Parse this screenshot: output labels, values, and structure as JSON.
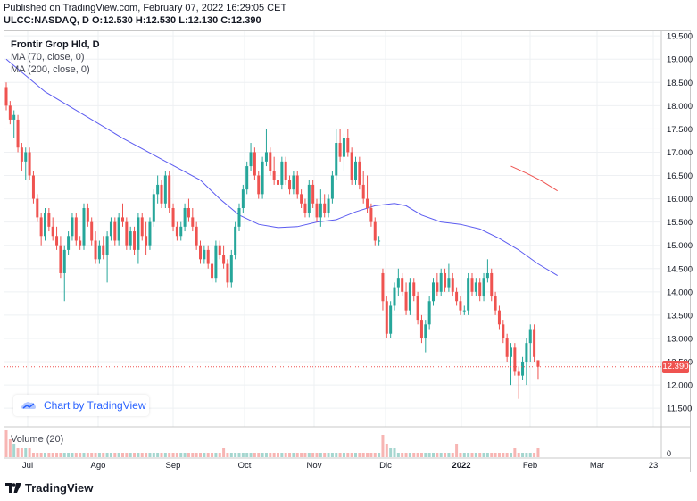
{
  "header": {
    "published": "Published on TradingView.com, February 07, 2022 16:29:05 CET",
    "symbol_line": "ULCC:NASDAQ, D  O:12.530 H:12.530 L:12.130 C:12.390"
  },
  "legend": {
    "title": "Frontir Grop Hld, D",
    "ma70": "MA (70, close, 0)",
    "ma200": "MA (200, close, 0)",
    "volume": "Volume (20)"
  },
  "badge": {
    "text": "Chart by TradingView"
  },
  "footer": {
    "logo_text": "TradingView"
  },
  "colors": {
    "up": "#26a69a",
    "down": "#ef5350",
    "ma70": "#5b5bf0",
    "ma200": "#ef5350",
    "grid": "#eef0f3"
  },
  "chart_data": {
    "type": "candlestick",
    "ylim": [
      11.4,
      19.6
    ],
    "yticks": [
      "19.500",
      "19.000",
      "18.500",
      "18.000",
      "17.500",
      "17.000",
      "16.500",
      "16.000",
      "15.500",
      "15.000",
      "14.500",
      "14.000",
      "13.500",
      "13.000",
      "12.500",
      "12.000",
      "11.500"
    ],
    "yticks_values": [
      19.5,
      19.0,
      18.5,
      18.0,
      17.5,
      17.0,
      16.5,
      16.0,
      15.5,
      15.0,
      14.5,
      14.0,
      13.5,
      13.0,
      12.5,
      12.0,
      11.5
    ],
    "xticks": [
      "Jul",
      "Ago",
      "Sep",
      "Oct",
      "Nov",
      "Dic",
      "2022",
      "Feb",
      "Mar",
      "23"
    ],
    "last_price": "12.390",
    "last_value": 12.39,
    "volume_zero_label": "0",
    "candles": [
      {
        "o": 18.4,
        "h": 18.5,
        "l": 17.9,
        "c": 18.0
      },
      {
        "o": 18.0,
        "h": 18.1,
        "l": 17.6,
        "c": 17.7
      },
      {
        "o": 17.7,
        "h": 17.9,
        "l": 17.3,
        "c": 17.8
      },
      {
        "o": 17.7,
        "h": 17.8,
        "l": 17.0,
        "c": 17.1
      },
      {
        "o": 17.1,
        "h": 17.2,
        "l": 16.6,
        "c": 16.8
      },
      {
        "o": 16.8,
        "h": 17.1,
        "l": 16.4,
        "c": 17.0
      },
      {
        "o": 17.0,
        "h": 17.1,
        "l": 16.4,
        "c": 16.5
      },
      {
        "o": 16.5,
        "h": 16.6,
        "l": 15.9,
        "c": 16.0
      },
      {
        "o": 16.0,
        "h": 16.1,
        "l": 15.5,
        "c": 15.6
      },
      {
        "o": 15.6,
        "h": 15.7,
        "l": 15.0,
        "c": 15.2
      },
      {
        "o": 15.2,
        "h": 15.8,
        "l": 15.1,
        "c": 15.7
      },
      {
        "o": 15.7,
        "h": 15.8,
        "l": 15.3,
        "c": 15.4
      },
      {
        "o": 15.4,
        "h": 15.6,
        "l": 15.1,
        "c": 15.2
      },
      {
        "o": 15.2,
        "h": 15.4,
        "l": 14.9,
        "c": 15.0
      },
      {
        "o": 15.0,
        "h": 15.2,
        "l": 14.3,
        "c": 14.4
      },
      {
        "o": 14.4,
        "h": 15.0,
        "l": 13.8,
        "c": 14.9
      },
      {
        "o": 14.9,
        "h": 15.3,
        "l": 14.8,
        "c": 15.2
      },
      {
        "o": 15.2,
        "h": 15.7,
        "l": 15.1,
        "c": 15.6
      },
      {
        "o": 15.6,
        "h": 15.7,
        "l": 15.0,
        "c": 15.1
      },
      {
        "o": 15.1,
        "h": 15.2,
        "l": 14.9,
        "c": 15.0
      },
      {
        "o": 15.0,
        "h": 15.9,
        "l": 14.9,
        "c": 15.8
      },
      {
        "o": 15.8,
        "h": 15.9,
        "l": 15.4,
        "c": 15.5
      },
      {
        "o": 15.5,
        "h": 15.6,
        "l": 15.0,
        "c": 15.1
      },
      {
        "o": 15.1,
        "h": 15.3,
        "l": 14.6,
        "c": 14.7
      },
      {
        "o": 14.7,
        "h": 15.1,
        "l": 14.6,
        "c": 15.0
      },
      {
        "o": 15.0,
        "h": 15.2,
        "l": 14.7,
        "c": 14.8
      },
      {
        "o": 14.8,
        "h": 15.3,
        "l": 14.2,
        "c": 15.2
      },
      {
        "o": 15.2,
        "h": 15.6,
        "l": 15.1,
        "c": 15.5
      },
      {
        "o": 15.5,
        "h": 15.6,
        "l": 15.0,
        "c": 15.1
      },
      {
        "o": 15.1,
        "h": 15.7,
        "l": 15.0,
        "c": 15.6
      },
      {
        "o": 15.6,
        "h": 15.9,
        "l": 15.4,
        "c": 15.5
      },
      {
        "o": 15.5,
        "h": 15.6,
        "l": 14.9,
        "c": 15.0
      },
      {
        "o": 15.0,
        "h": 15.4,
        "l": 14.9,
        "c": 15.3
      },
      {
        "o": 15.3,
        "h": 15.4,
        "l": 14.8,
        "c": 14.9
      },
      {
        "o": 14.9,
        "h": 15.7,
        "l": 14.6,
        "c": 15.6
      },
      {
        "o": 15.6,
        "h": 15.7,
        "l": 15.1,
        "c": 15.2
      },
      {
        "o": 15.2,
        "h": 15.5,
        "l": 14.8,
        "c": 15.0
      },
      {
        "o": 15.0,
        "h": 15.6,
        "l": 14.9,
        "c": 15.5
      },
      {
        "o": 15.5,
        "h": 16.2,
        "l": 15.4,
        "c": 16.1
      },
      {
        "o": 16.1,
        "h": 16.5,
        "l": 15.9,
        "c": 16.3
      },
      {
        "o": 16.3,
        "h": 16.4,
        "l": 15.8,
        "c": 15.9
      },
      {
        "o": 15.9,
        "h": 16.6,
        "l": 15.8,
        "c": 16.5
      },
      {
        "o": 16.5,
        "h": 16.6,
        "l": 15.7,
        "c": 15.8
      },
      {
        "o": 15.8,
        "h": 15.9,
        "l": 15.3,
        "c": 15.4
      },
      {
        "o": 15.4,
        "h": 15.5,
        "l": 15.1,
        "c": 15.2
      },
      {
        "o": 15.2,
        "h": 15.5,
        "l": 15.1,
        "c": 15.4
      },
      {
        "o": 15.4,
        "h": 15.9,
        "l": 15.3,
        "c": 15.8
      },
      {
        "o": 15.8,
        "h": 16.0,
        "l": 15.5,
        "c": 15.6
      },
      {
        "o": 15.6,
        "h": 15.8,
        "l": 15.3,
        "c": 15.4
      },
      {
        "o": 15.4,
        "h": 15.5,
        "l": 14.9,
        "c": 15.0
      },
      {
        "o": 15.0,
        "h": 15.1,
        "l": 14.6,
        "c": 14.7
      },
      {
        "o": 14.7,
        "h": 15.0,
        "l": 14.6,
        "c": 14.9
      },
      {
        "o": 14.9,
        "h": 15.0,
        "l": 14.5,
        "c": 14.6
      },
      {
        "o": 14.6,
        "h": 14.7,
        "l": 14.2,
        "c": 14.3
      },
      {
        "o": 14.3,
        "h": 15.1,
        "l": 14.2,
        "c": 15.0
      },
      {
        "o": 15.0,
        "h": 15.1,
        "l": 14.7,
        "c": 14.8
      },
      {
        "o": 14.8,
        "h": 15.0,
        "l": 14.5,
        "c": 14.6
      },
      {
        "o": 14.6,
        "h": 14.7,
        "l": 14.1,
        "c": 14.2
      },
      {
        "o": 14.2,
        "h": 14.9,
        "l": 14.1,
        "c": 14.8
      },
      {
        "o": 14.8,
        "h": 15.5,
        "l": 14.7,
        "c": 15.4
      },
      {
        "o": 15.4,
        "h": 15.9,
        "l": 15.3,
        "c": 15.8
      },
      {
        "o": 15.8,
        "h": 16.3,
        "l": 15.7,
        "c": 16.2
      },
      {
        "o": 16.2,
        "h": 16.8,
        "l": 16.1,
        "c": 16.7
      },
      {
        "o": 16.7,
        "h": 17.2,
        "l": 16.6,
        "c": 17.0
      },
      {
        "o": 17.0,
        "h": 17.1,
        "l": 16.4,
        "c": 16.5
      },
      {
        "o": 16.5,
        "h": 16.6,
        "l": 16.0,
        "c": 16.1
      },
      {
        "o": 16.1,
        "h": 16.9,
        "l": 16.0,
        "c": 16.8
      },
      {
        "o": 16.8,
        "h": 17.5,
        "l": 16.7,
        "c": 17.0
      },
      {
        "o": 17.0,
        "h": 17.1,
        "l": 16.5,
        "c": 16.6
      },
      {
        "o": 16.6,
        "h": 16.9,
        "l": 16.3,
        "c": 16.4
      },
      {
        "o": 16.4,
        "h": 16.7,
        "l": 16.2,
        "c": 16.3
      },
      {
        "o": 16.3,
        "h": 16.9,
        "l": 16.2,
        "c": 16.8
      },
      {
        "o": 16.8,
        "h": 16.9,
        "l": 16.3,
        "c": 16.4
      },
      {
        "o": 16.4,
        "h": 16.5,
        "l": 16.1,
        "c": 16.2
      },
      {
        "o": 16.2,
        "h": 16.6,
        "l": 16.1,
        "c": 16.5
      },
      {
        "o": 16.5,
        "h": 16.6,
        "l": 16.0,
        "c": 16.1
      },
      {
        "o": 16.1,
        "h": 16.2,
        "l": 15.8,
        "c": 15.9
      },
      {
        "o": 15.9,
        "h": 16.0,
        "l": 15.6,
        "c": 15.7
      },
      {
        "o": 15.7,
        "h": 16.4,
        "l": 15.6,
        "c": 16.3
      },
      {
        "o": 16.3,
        "h": 16.4,
        "l": 15.8,
        "c": 15.9
      },
      {
        "o": 15.9,
        "h": 16.0,
        "l": 15.5,
        "c": 15.6
      },
      {
        "o": 15.6,
        "h": 16.2,
        "l": 15.4,
        "c": 15.9
      },
      {
        "o": 15.9,
        "h": 16.1,
        "l": 15.6,
        "c": 15.7
      },
      {
        "o": 15.7,
        "h": 16.1,
        "l": 15.6,
        "c": 16.0
      },
      {
        "o": 16.0,
        "h": 16.6,
        "l": 15.9,
        "c": 16.5
      },
      {
        "o": 16.5,
        "h": 17.5,
        "l": 16.4,
        "c": 17.2
      },
      {
        "o": 17.2,
        "h": 17.5,
        "l": 16.8,
        "c": 16.9
      },
      {
        "o": 16.9,
        "h": 17.4,
        "l": 16.6,
        "c": 17.3
      },
      {
        "o": 17.3,
        "h": 17.5,
        "l": 16.9,
        "c": 17.0
      },
      {
        "o": 17.0,
        "h": 17.1,
        "l": 16.3,
        "c": 16.4
      },
      {
        "o": 16.4,
        "h": 16.9,
        "l": 16.3,
        "c": 16.8
      },
      {
        "o": 16.8,
        "h": 16.9,
        "l": 16.2,
        "c": 16.3
      },
      {
        "o": 16.3,
        "h": 16.6,
        "l": 15.9,
        "c": 16.0
      },
      {
        "o": 16.0,
        "h": 16.5,
        "l": 15.7,
        "c": 15.8
      },
      {
        "o": 15.8,
        "h": 15.9,
        "l": 15.4,
        "c": 15.5
      },
      {
        "o": 15.5,
        "h": 15.6,
        "l": 15.0,
        "c": 15.1
      },
      {
        "o": 15.1,
        "h": 15.2,
        "l": 15.0,
        "c": 15.1
      },
      {
        "o": 14.4,
        "h": 14.5,
        "l": 13.6,
        "c": 13.8
      },
      {
        "o": 13.8,
        "h": 13.9,
        "l": 13.0,
        "c": 13.1
      },
      {
        "o": 13.1,
        "h": 13.8,
        "l": 13.0,
        "c": 13.7
      },
      {
        "o": 13.7,
        "h": 14.2,
        "l": 13.6,
        "c": 14.1
      },
      {
        "o": 14.1,
        "h": 14.5,
        "l": 13.9,
        "c": 14.3
      },
      {
        "o": 14.3,
        "h": 14.4,
        "l": 13.9,
        "c": 14.0
      },
      {
        "o": 14.0,
        "h": 14.2,
        "l": 13.5,
        "c": 13.6
      },
      {
        "o": 13.6,
        "h": 14.3,
        "l": 13.5,
        "c": 14.2
      },
      {
        "o": 14.2,
        "h": 14.3,
        "l": 13.8,
        "c": 13.9
      },
      {
        "o": 13.9,
        "h": 14.0,
        "l": 13.3,
        "c": 13.4
      },
      {
        "o": 13.4,
        "h": 13.5,
        "l": 12.9,
        "c": 13.0
      },
      {
        "o": 13.0,
        "h": 13.4,
        "l": 12.7,
        "c": 13.3
      },
      {
        "o": 13.3,
        "h": 13.9,
        "l": 13.2,
        "c": 13.8
      },
      {
        "o": 13.8,
        "h": 14.3,
        "l": 13.7,
        "c": 14.2
      },
      {
        "o": 14.2,
        "h": 14.4,
        "l": 13.9,
        "c": 14.0
      },
      {
        "o": 14.0,
        "h": 14.5,
        "l": 13.9,
        "c": 14.4
      },
      {
        "o": 14.4,
        "h": 14.5,
        "l": 14.0,
        "c": 14.1
      },
      {
        "o": 14.1,
        "h": 14.6,
        "l": 14.0,
        "c": 14.3
      },
      {
        "o": 14.3,
        "h": 14.4,
        "l": 13.9,
        "c": 14.0
      },
      {
        "o": 14.0,
        "h": 14.1,
        "l": 13.7,
        "c": 13.8
      },
      {
        "o": 13.8,
        "h": 13.9,
        "l": 13.5,
        "c": 13.6
      },
      {
        "o": 13.6,
        "h": 13.7,
        "l": 13.5,
        "c": 13.6
      },
      {
        "o": 13.6,
        "h": 14.4,
        "l": 13.5,
        "c": 14.3
      },
      {
        "o": 14.3,
        "h": 14.4,
        "l": 13.9,
        "c": 14.0
      },
      {
        "o": 14.0,
        "h": 14.3,
        "l": 13.9,
        "c": 14.2
      },
      {
        "o": 14.2,
        "h": 14.3,
        "l": 13.8,
        "c": 13.9
      },
      {
        "o": 13.9,
        "h": 14.4,
        "l": 13.8,
        "c": 14.3
      },
      {
        "o": 14.3,
        "h": 14.7,
        "l": 14.2,
        "c": 14.4
      },
      {
        "o": 14.4,
        "h": 14.5,
        "l": 13.8,
        "c": 13.9
      },
      {
        "o": 13.9,
        "h": 14.0,
        "l": 13.5,
        "c": 13.6
      },
      {
        "o": 13.6,
        "h": 13.7,
        "l": 13.2,
        "c": 13.3
      },
      {
        "o": 13.3,
        "h": 13.4,
        "l": 12.9,
        "c": 13.0
      },
      {
        "o": 13.0,
        "h": 13.1,
        "l": 12.5,
        "c": 12.6
      },
      {
        "o": 12.6,
        "h": 12.9,
        "l": 12.0,
        "c": 12.8
      },
      {
        "o": 12.8,
        "h": 12.9,
        "l": 12.2,
        "c": 12.3
      },
      {
        "o": 12.3,
        "h": 12.4,
        "l": 11.7,
        "c": 12.2
      },
      {
        "o": 12.2,
        "h": 12.6,
        "l": 12.1,
        "c": 12.5
      },
      {
        "o": 12.5,
        "h": 13.0,
        "l": 12.0,
        "c": 12.9
      },
      {
        "o": 12.9,
        "h": 13.3,
        "l": 12.5,
        "c": 13.2
      },
      {
        "o": 13.2,
        "h": 13.3,
        "l": 12.5,
        "c": 12.6
      },
      {
        "o": 12.53,
        "h": 12.53,
        "l": 12.13,
        "c": 12.39
      }
    ],
    "ma70": [
      [
        0,
        19.0
      ],
      [
        10,
        18.3
      ],
      [
        20,
        17.8
      ],
      [
        30,
        17.3
      ],
      [
        40,
        16.85
      ],
      [
        50,
        16.4
      ],
      [
        55,
        16.0
      ],
      [
        60,
        15.65
      ],
      [
        65,
        15.45
      ],
      [
        70,
        15.38
      ],
      [
        75,
        15.4
      ],
      [
        80,
        15.5
      ],
      [
        85,
        15.55
      ],
      [
        90,
        15.72
      ],
      [
        95,
        15.85
      ],
      [
        100,
        15.9
      ],
      [
        103,
        15.85
      ],
      [
        107,
        15.65
      ],
      [
        112,
        15.5
      ],
      [
        117,
        15.45
      ],
      [
        122,
        15.35
      ],
      [
        127,
        15.15
      ],
      [
        132,
        14.9
      ],
      [
        137,
        14.6
      ],
      [
        142,
        14.35
      ]
    ],
    "ma200": [
      [
        130,
        16.7
      ],
      [
        134,
        16.55
      ],
      [
        138,
        16.38
      ],
      [
        142,
        16.17
      ]
    ],
    "volume": [
      6,
      4,
      3,
      2,
      2,
      2,
      2,
      1,
      1,
      1,
      1,
      1,
      1,
      1,
      1,
      1,
      1,
      1,
      1,
      1,
      1,
      1,
      1,
      1,
      1,
      1,
      1,
      1,
      1,
      1,
      1,
      1,
      1,
      1,
      1,
      1,
      1,
      1,
      1,
      1,
      1,
      1,
      1,
      1,
      1,
      1,
      1,
      1,
      1,
      1,
      1,
      1,
      1,
      1,
      1,
      1,
      2,
      1,
      1,
      1,
      1,
      1,
      1,
      1,
      1,
      1,
      1,
      1,
      1,
      1,
      1,
      1,
      1,
      1,
      1,
      1,
      1,
      1,
      1,
      1,
      1,
      1,
      1,
      1,
      1,
      1,
      1,
      1,
      1,
      1,
      1,
      1,
      1,
      1,
      1,
      1,
      1,
      5,
      3,
      2,
      2,
      1,
      1,
      1,
      1,
      1,
      1,
      1,
      1,
      1,
      1,
      1,
      1,
      1,
      1,
      1,
      3,
      1,
      1,
      1,
      1,
      1,
      1,
      1,
      1,
      1,
      1,
      1,
      1,
      1,
      1,
      2,
      1,
      1,
      1,
      1,
      1,
      2,
      1,
      1,
      1,
      1
    ]
  }
}
